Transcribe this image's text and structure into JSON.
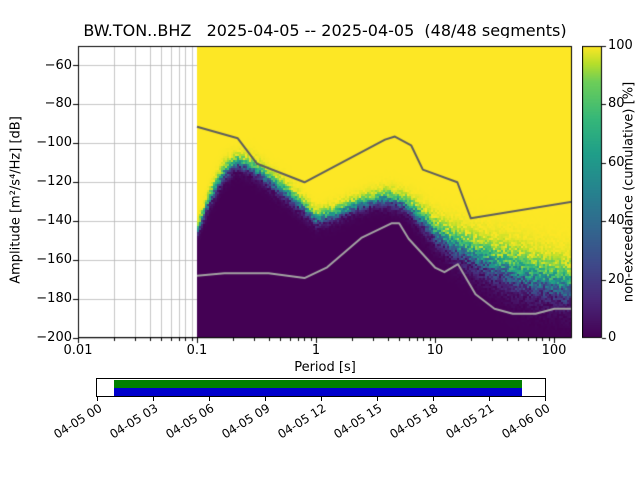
{
  "title": "BW.TON..BHZ   2025-04-05 -- 2025-04-05  (48/48 segments)",
  "station": "BW.TON..BHZ",
  "date_range": "2025-04-05 -- 2025-04-05",
  "segments": "48/48",
  "chart_data": {
    "type": "heatmap",
    "title": "BW.TON..BHZ   2025-04-05 -- 2025-04-05  (48/48 segments)",
    "xlabel": "Period [s]",
    "ylabel": "Amplitude [m²/s⁴/Hz] [dB]",
    "colorbar_label": "non-exceedance (cumulative) [%]",
    "x_scale": "log",
    "grid": true,
    "xlim": [
      0.01,
      141.6
    ],
    "ylim": [
      -200,
      -50
    ],
    "clim": [
      0,
      100
    ],
    "colormap": "viridis",
    "xticks": [
      "0.01",
      "0.1",
      "1",
      "10",
      "100"
    ],
    "xtick_values": [
      0.01,
      0.1,
      1,
      10,
      100
    ],
    "yticks": [
      "−60",
      "−80",
      "−100",
      "−120",
      "−140",
      "−160",
      "−180",
      "−200"
    ],
    "ytick_values": [
      -60,
      -80,
      -100,
      -120,
      -140,
      -160,
      -180,
      -200
    ],
    "colorbar_ticks": [
      "0",
      "20",
      "40",
      "60",
      "80",
      "100"
    ],
    "colorbar_tick_values": [
      0,
      20,
      40,
      60,
      80,
      100
    ],
    "viridis_stops": [
      [
        0,
        "#440154"
      ],
      [
        0.13,
        "#482878"
      ],
      [
        0.25,
        "#3e4989"
      ],
      [
        0.38,
        "#31688e"
      ],
      [
        0.5,
        "#26828e"
      ],
      [
        0.63,
        "#1f9e89"
      ],
      [
        0.75,
        "#35b779"
      ],
      [
        0.88,
        "#6ece58"
      ],
      [
        0.94,
        "#b5de2b"
      ],
      [
        1,
        "#fde725"
      ]
    ],
    "distribution": {
      "description": "PPSD cumulative non-exceedance [%] vs period and amplitude; median_db is the 50% level, spread_db the transition half-width",
      "period_s": [
        0.1,
        0.13,
        0.17,
        0.22,
        0.3,
        0.4,
        0.55,
        0.75,
        1.0,
        1.4,
        2.0,
        3.0,
        4.0,
        5.5,
        7.5,
        10.0,
        14.0,
        20.0,
        30.0,
        45.0,
        70.0,
        100.0,
        141.0
      ],
      "median_db": [
        -145,
        -128,
        -115,
        -110,
        -113,
        -119,
        -125,
        -132,
        -139,
        -137,
        -133,
        -129.5,
        -128.5,
        -131,
        -138,
        -146,
        -152,
        -157,
        -162,
        -166,
        -170,
        -172,
        -174
      ],
      "spread_db": [
        3,
        4,
        4,
        3.5,
        4,
        4,
        4,
        4,
        3.5,
        3.5,
        3.5,
        3.5,
        4,
        4,
        5,
        6,
        7,
        8,
        9,
        10,
        10,
        10,
        10
      ]
    },
    "noise_models": {
      "high": {
        "name": "high-noise-model-line",
        "color": "#5e5e5e",
        "points": [
          [
            0.1,
            -91.5
          ],
          [
            0.22,
            -97.4
          ],
          [
            0.32,
            -110.5
          ],
          [
            0.8,
            -120.0
          ],
          [
            3.8,
            -98.1
          ],
          [
            4.6,
            -96.5
          ],
          [
            6.3,
            -101.0
          ],
          [
            7.9,
            -113.5
          ],
          [
            15.4,
            -120.0
          ],
          [
            20.0,
            -138.5
          ],
          [
            354.8,
            -126.0
          ]
        ]
      },
      "low": {
        "name": "low-noise-model-line",
        "color": "#a3a3a3",
        "points": [
          [
            0.1,
            -168.0
          ],
          [
            0.17,
            -166.7
          ],
          [
            0.4,
            -166.7
          ],
          [
            0.8,
            -169.2
          ],
          [
            1.24,
            -163.7
          ],
          [
            2.4,
            -148.6
          ],
          [
            4.3,
            -141.1
          ],
          [
            5.0,
            -141.1
          ],
          [
            6.0,
            -149.0
          ],
          [
            10.0,
            -163.8
          ],
          [
            12.0,
            -166.2
          ],
          [
            15.6,
            -162.1
          ],
          [
            21.9,
            -177.5
          ],
          [
            31.6,
            -185.0
          ],
          [
            45.0,
            -187.5
          ],
          [
            70.0,
            -187.5
          ],
          [
            101.0,
            -185.0
          ],
          [
            154.0,
            -185.0
          ]
        ]
      }
    }
  },
  "timeline": {
    "labels": [
      "04-05 00",
      "04-05 03",
      "04-05 06",
      "04-05 09",
      "04-05 12",
      "04-05 15",
      "04-05 18",
      "04-05 21",
      "04-06 00"
    ],
    "top_color": "#008000",
    "bottom_color": "#0000cc"
  }
}
